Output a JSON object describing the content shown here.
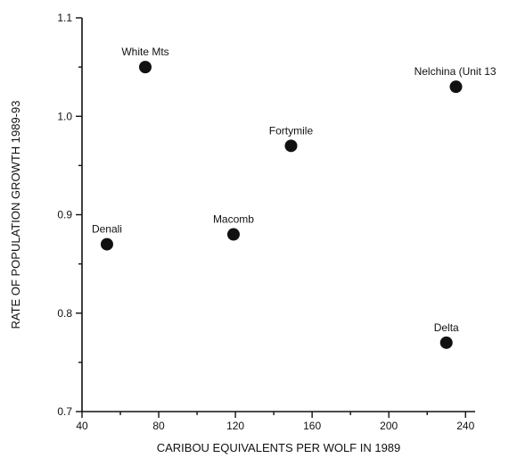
{
  "chart_data": {
    "type": "scatter",
    "xlabel": "CARIBOU EQUIVALENTS PER WOLF IN 1989",
    "ylabel": "RATE OF POPULATION GROWTH 1989-93",
    "xlim": [
      40,
      245
    ],
    "ylim": [
      0.7,
      1.1
    ],
    "x_ticks": [
      40,
      80,
      120,
      160,
      200,
      240
    ],
    "y_ticks": [
      0.7,
      0.8,
      0.9,
      1.0,
      1.1
    ],
    "x_tick_labels": [
      "40",
      "80",
      "120",
      "160",
      "200",
      "240"
    ],
    "y_tick_labels": [
      "0.7",
      "0.8",
      "0.9",
      "1.0",
      "1.1"
    ],
    "grid": false,
    "points": [
      {
        "label": "White Mts",
        "x": 73,
        "y": 1.05
      },
      {
        "label": "Nelchina (Unit 13",
        "x": 235,
        "y": 1.03
      },
      {
        "label": "Fortymile",
        "x": 149,
        "y": 0.97
      },
      {
        "label": "Denali",
        "x": 53,
        "y": 0.87
      },
      {
        "label": "Macomb",
        "x": 119,
        "y": 0.88
      },
      {
        "label": "Delta",
        "x": 230,
        "y": 0.77
      }
    ]
  }
}
